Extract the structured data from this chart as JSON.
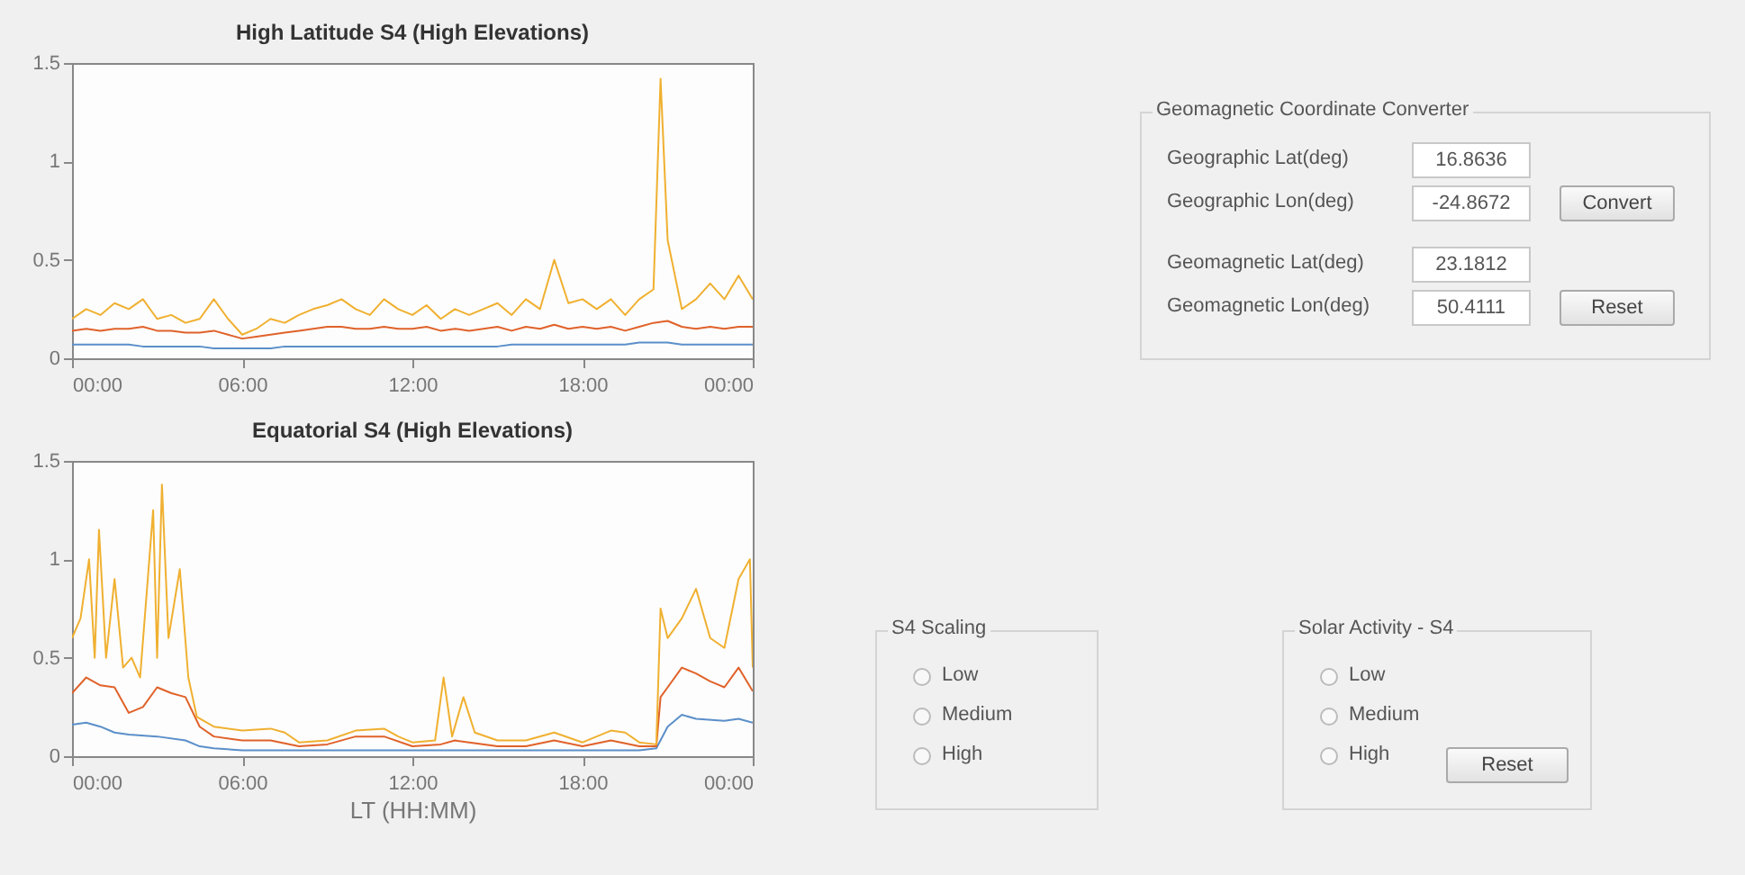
{
  "chart_data": [
    {
      "type": "line",
      "title": "High Latitude S4 (High Elevations)",
      "xlim": [
        0,
        24
      ],
      "ylim": [
        0,
        1.5
      ],
      "xticks": [
        {
          "value": 0,
          "label": "00:00"
        },
        {
          "value": 6,
          "label": "06:00"
        },
        {
          "value": 12,
          "label": "12:00"
        },
        {
          "value": 18,
          "label": "18:00"
        },
        {
          "value": 24,
          "label": "00:00"
        }
      ],
      "yticks": [
        0,
        0.5,
        1,
        1.5
      ],
      "grid": false,
      "series": [
        {
          "color": "#5b8fc9",
          "x": [
            0,
            0.5,
            1,
            1.5,
            2,
            2.5,
            3,
            3.5,
            4,
            4.5,
            5,
            5.5,
            6,
            6.5,
            7,
            7.5,
            8,
            8.5,
            9,
            9.5,
            10,
            10.5,
            11,
            11.5,
            12,
            12.5,
            13,
            13.5,
            14,
            14.5,
            15,
            15.5,
            16,
            16.5,
            17,
            17.5,
            18,
            18.5,
            19,
            19.5,
            20,
            20.5,
            21,
            21.5,
            22,
            22.5,
            23,
            23.5,
            24
          ],
          "values": [
            0.07,
            0.07,
            0.07,
            0.07,
            0.07,
            0.06,
            0.06,
            0.06,
            0.06,
            0.06,
            0.05,
            0.05,
            0.05,
            0.05,
            0.05,
            0.06,
            0.06,
            0.06,
            0.06,
            0.06,
            0.06,
            0.06,
            0.06,
            0.06,
            0.06,
            0.06,
            0.06,
            0.06,
            0.06,
            0.06,
            0.06,
            0.07,
            0.07,
            0.07,
            0.07,
            0.07,
            0.07,
            0.07,
            0.07,
            0.07,
            0.08,
            0.08,
            0.08,
            0.07,
            0.07,
            0.07,
            0.07,
            0.07,
            0.07
          ]
        },
        {
          "color": "#e0622a",
          "x": [
            0,
            0.5,
            1,
            1.5,
            2,
            2.5,
            3,
            3.5,
            4,
            4.5,
            5,
            5.5,
            6,
            6.5,
            7,
            7.5,
            8,
            8.5,
            9,
            9.5,
            10,
            10.5,
            11,
            11.5,
            12,
            12.5,
            13,
            13.5,
            14,
            14.5,
            15,
            15.5,
            16,
            16.5,
            17,
            17.5,
            18,
            18.5,
            19,
            19.5,
            20,
            20.5,
            21,
            21.5,
            22,
            22.5,
            23,
            23.5,
            24
          ],
          "values": [
            0.14,
            0.15,
            0.14,
            0.15,
            0.15,
            0.16,
            0.14,
            0.14,
            0.13,
            0.13,
            0.14,
            0.12,
            0.1,
            0.11,
            0.12,
            0.13,
            0.14,
            0.15,
            0.16,
            0.16,
            0.15,
            0.15,
            0.16,
            0.15,
            0.15,
            0.16,
            0.14,
            0.15,
            0.14,
            0.15,
            0.16,
            0.14,
            0.16,
            0.15,
            0.17,
            0.15,
            0.16,
            0.15,
            0.16,
            0.14,
            0.16,
            0.18,
            0.19,
            0.16,
            0.15,
            0.16,
            0.15,
            0.16,
            0.16
          ]
        },
        {
          "color": "#f0b030",
          "x": [
            0,
            0.5,
            1,
            1.5,
            2,
            2.5,
            3,
            3.5,
            4,
            4.5,
            5,
            5.5,
            6,
            6.5,
            7,
            7.5,
            8,
            8.5,
            9,
            9.5,
            10,
            10.5,
            11,
            11.5,
            12,
            12.5,
            13,
            13.5,
            14,
            14.5,
            15,
            15.5,
            16,
            16.5,
            17,
            17.5,
            18,
            18.5,
            19,
            19.5,
            20,
            20.5,
            20.75,
            21,
            21.5,
            22,
            22.5,
            23,
            23.5,
            24
          ],
          "values": [
            0.2,
            0.25,
            0.22,
            0.28,
            0.25,
            0.3,
            0.2,
            0.22,
            0.18,
            0.2,
            0.3,
            0.2,
            0.12,
            0.15,
            0.2,
            0.18,
            0.22,
            0.25,
            0.27,
            0.3,
            0.25,
            0.22,
            0.3,
            0.25,
            0.22,
            0.27,
            0.2,
            0.25,
            0.22,
            0.25,
            0.28,
            0.22,
            0.3,
            0.25,
            0.5,
            0.28,
            0.3,
            0.25,
            0.3,
            0.22,
            0.3,
            0.35,
            1.42,
            0.6,
            0.25,
            0.3,
            0.38,
            0.3,
            0.42,
            0.3
          ]
        }
      ]
    },
    {
      "type": "line",
      "title": "Equatorial S4 (High Elevations)",
      "xlabel": "LT (HH:MM)",
      "xlim": [
        0,
        24
      ],
      "ylim": [
        0,
        1.5
      ],
      "xticks": [
        {
          "value": 0,
          "label": "00:00"
        },
        {
          "value": 6,
          "label": "06:00"
        },
        {
          "value": 12,
          "label": "12:00"
        },
        {
          "value": 18,
          "label": "18:00"
        },
        {
          "value": 24,
          "label": "00:00"
        }
      ],
      "yticks": [
        0,
        0.5,
        1,
        1.5
      ],
      "grid": false,
      "series": [
        {
          "color": "#5b8fc9",
          "x": [
            0,
            0.5,
            1,
            1.5,
            2,
            3,
            4,
            4.5,
            5,
            6,
            8,
            10,
            12,
            14,
            16,
            18,
            20,
            20.6,
            21,
            21.5,
            22,
            23,
            23.5,
            24
          ],
          "values": [
            0.16,
            0.17,
            0.15,
            0.12,
            0.11,
            0.1,
            0.08,
            0.05,
            0.04,
            0.03,
            0.03,
            0.03,
            0.03,
            0.03,
            0.03,
            0.03,
            0.03,
            0.04,
            0.15,
            0.21,
            0.19,
            0.18,
            0.19,
            0.17
          ]
        },
        {
          "color": "#e0622a",
          "x": [
            0,
            0.5,
            1,
            1.5,
            2,
            2.5,
            3,
            3.5,
            4,
            4.5,
            5,
            6,
            7,
            8,
            9,
            10,
            11,
            12,
            13,
            13.5,
            14,
            15,
            16,
            17,
            18,
            19,
            20,
            20.6,
            20.75,
            21,
            21.5,
            22,
            22.5,
            23,
            23.5,
            24
          ],
          "values": [
            0.32,
            0.4,
            0.36,
            0.35,
            0.22,
            0.25,
            0.35,
            0.32,
            0.3,
            0.15,
            0.1,
            0.08,
            0.08,
            0.05,
            0.06,
            0.1,
            0.1,
            0.05,
            0.06,
            0.08,
            0.07,
            0.05,
            0.05,
            0.08,
            0.05,
            0.08,
            0.05,
            0.05,
            0.3,
            0.35,
            0.45,
            0.42,
            0.38,
            0.35,
            0.45,
            0.33
          ]
        },
        {
          "color": "#f0b030",
          "x": [
            0,
            0.3,
            0.6,
            0.8,
            0.95,
            1.2,
            1.5,
            1.8,
            2.1,
            2.4,
            2.86,
            3,
            3.17,
            3.4,
            3.8,
            4.1,
            4.4,
            5,
            6,
            7,
            7.5,
            8,
            9,
            10,
            11,
            11.5,
            12,
            12.8,
            13.1,
            13.4,
            13.8,
            14.2,
            15,
            16,
            17,
            18,
            18.5,
            19,
            19.5,
            20,
            20.6,
            20.75,
            21,
            21.5,
            22,
            22.5,
            23,
            23.5,
            23.9,
            24
          ],
          "values": [
            0.6,
            0.7,
            1.0,
            0.5,
            1.15,
            0.5,
            0.9,
            0.45,
            0.5,
            0.4,
            1.25,
            0.5,
            1.38,
            0.6,
            0.95,
            0.4,
            0.2,
            0.15,
            0.13,
            0.14,
            0.12,
            0.07,
            0.08,
            0.13,
            0.14,
            0.1,
            0.07,
            0.08,
            0.4,
            0.1,
            0.3,
            0.12,
            0.08,
            0.08,
            0.12,
            0.07,
            0.1,
            0.13,
            0.12,
            0.07,
            0.06,
            0.75,
            0.6,
            0.7,
            0.85,
            0.6,
            0.55,
            0.9,
            1.0,
            0.45
          ]
        }
      ]
    },
    {
      "type": "other",
      "title": "Geomagnetic Coordinate Converter",
      "categories": [
        "Geographic Lat(deg)",
        "Geographic Lon(deg)",
        "Geomagnetic Lat(deg)",
        "Geomagnetic Lon(deg)"
      ],
      "value_labels": [
        "16.8636",
        "-24.8672",
        "23.1812",
        "50.4111"
      ],
      "annotations": [
        "Convert",
        "Reset"
      ]
    },
    {
      "type": "other",
      "title": "S4 Scaling",
      "categories": [
        "Low",
        "Medium",
        "High"
      ]
    },
    {
      "type": "other",
      "title": "Solar Activity - S4",
      "categories": [
        "Low",
        "Medium",
        "High"
      ],
      "annotations": [
        "Reset"
      ]
    }
  ]
}
